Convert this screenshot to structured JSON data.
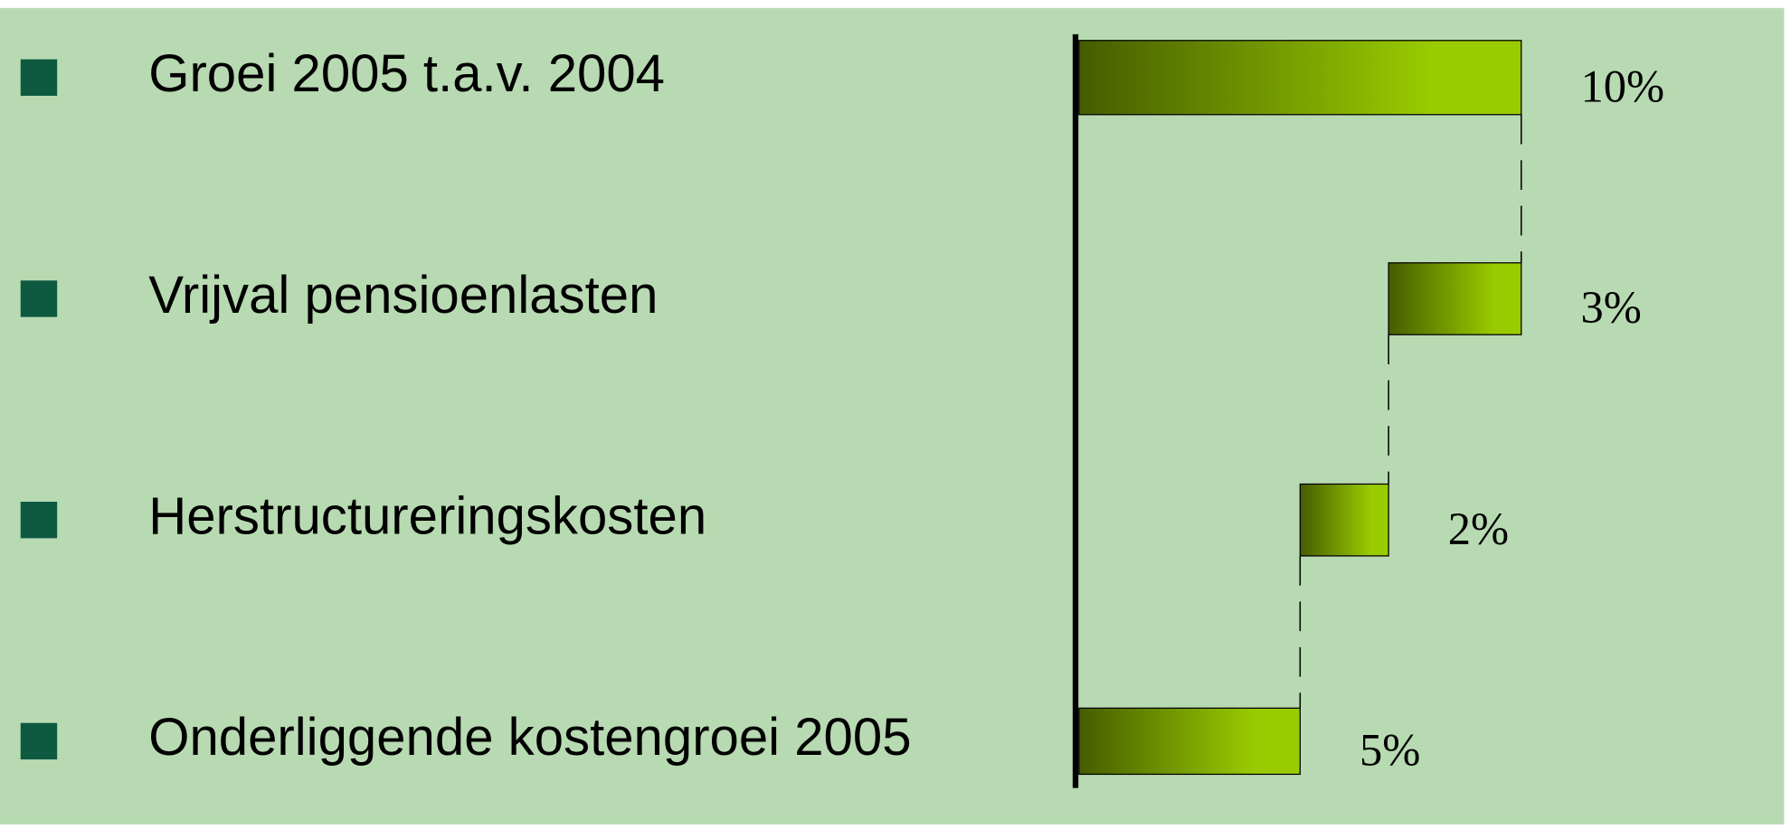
{
  "chart_data": {
    "type": "waterfall",
    "categories": [
      "Groei 2005 t.a.v. 2004",
      "Vrijval pensioenlasten",
      "Herstructureringskosten",
      "Onderliggende kostengroei 2005"
    ],
    "values": [
      10,
      3,
      2,
      5
    ],
    "value_labels": [
      "10%",
      "3%",
      "2%",
      "5%"
    ],
    "measures": [
      "absolute",
      "decrease",
      "decrease",
      "total"
    ],
    "xlim": [
      0,
      10
    ],
    "color_start": "#465c00",
    "color_end": "#99cc00",
    "bullet_color": "#0e5a40",
    "background": "#b8dab2"
  }
}
